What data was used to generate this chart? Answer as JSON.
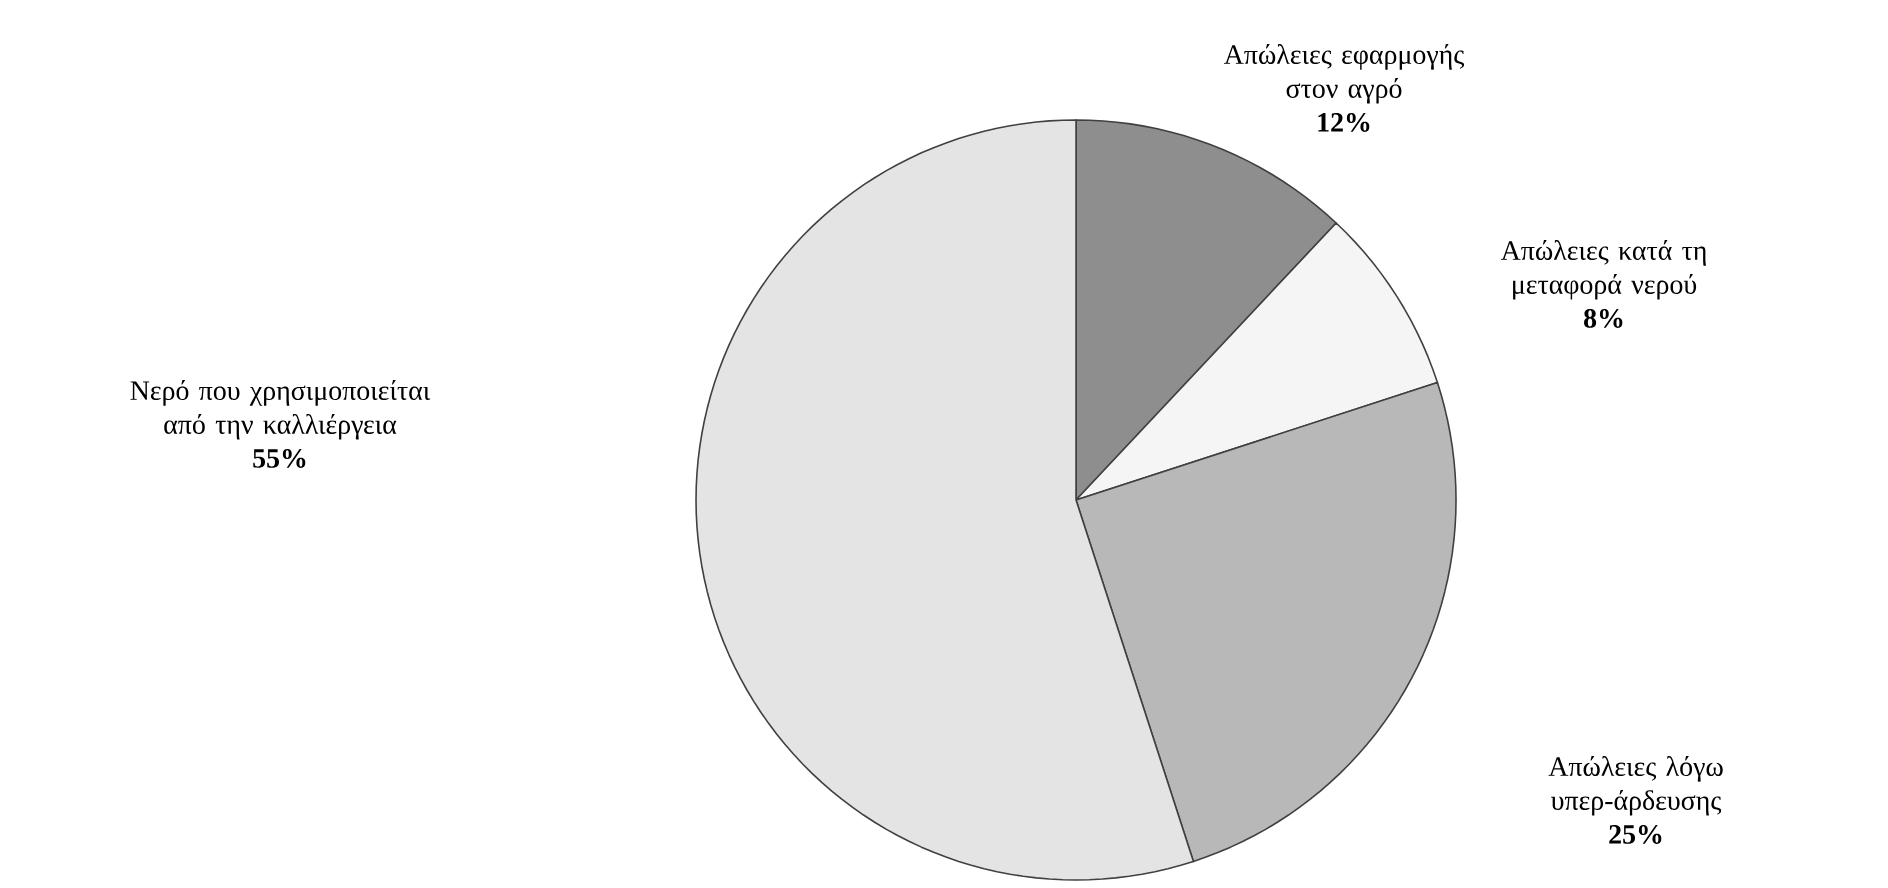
{
  "chart_data": {
    "type": "pie",
    "categories": [
      "Απώλειες εφαρμογής στον αγρό",
      "Απώλειες κατά τη μεταφορά νερού",
      "Απώλειες λόγω υπερ-άρδευσης",
      "Νερό που χρησιμοποιείται από την καλλιέργεια"
    ],
    "values": [
      12,
      8,
      25,
      55
    ],
    "value_labels": [
      "12%",
      "8%",
      "25%",
      "55%"
    ],
    "colors": [
      "#8e8e8e",
      "#f5f5f5",
      "#b8b8b8",
      "#e4e4e4"
    ],
    "legend": false
  }
}
